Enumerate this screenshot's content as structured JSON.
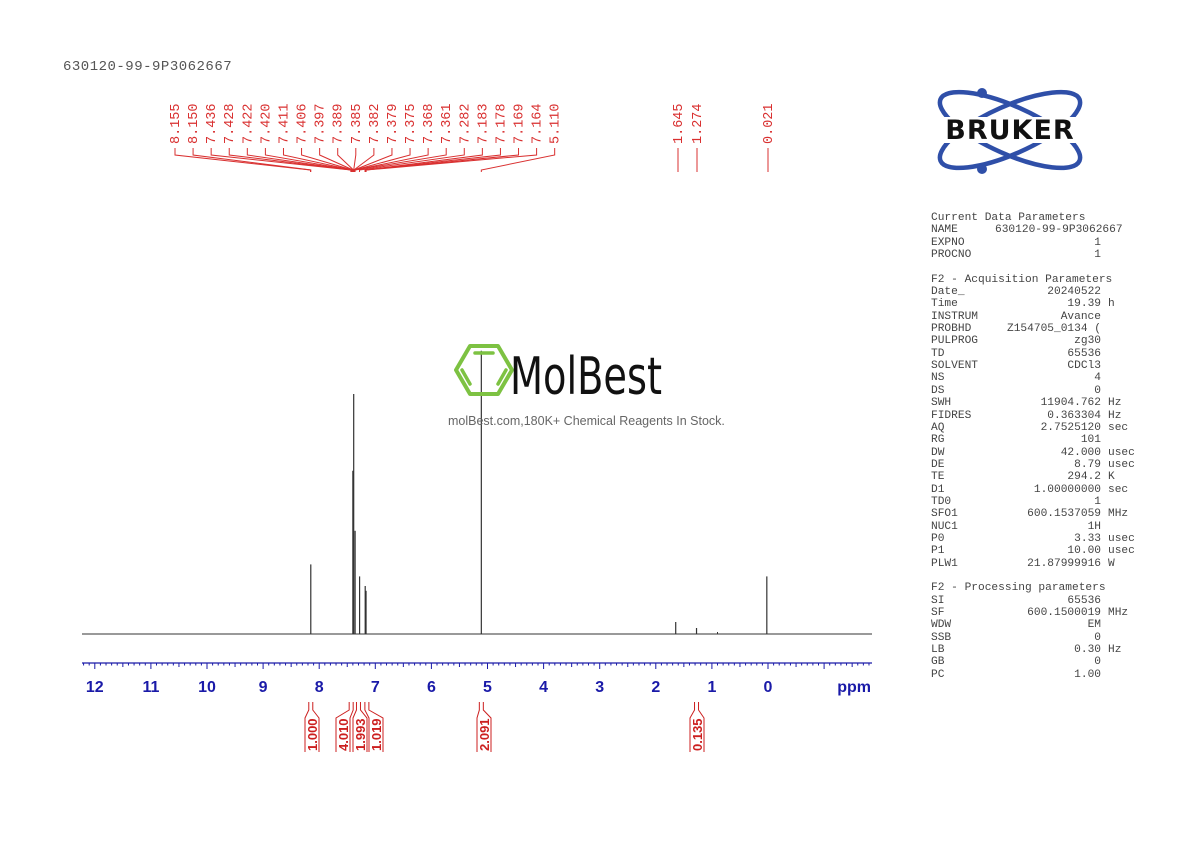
{
  "title": "630120-99-9P3062667",
  "colors": {
    "peak_labels": "#d93030",
    "axis": "#1a1aa8",
    "spectrum": "#333333",
    "integral": "#cc1f1f",
    "bruker_blue": "#2f4fa8",
    "molbest_green": "#7dc242"
  },
  "logo": {
    "brand": "BRUKER"
  },
  "watermark": {
    "brand": "MolBest",
    "tagline": "molBest.com,180K+ Chemical Reagents In Stock."
  },
  "parameters": {
    "current": {
      "heading": "Current Data Parameters",
      "rows": [
        {
          "key": "NAME",
          "value": "630120-99-9P3062667",
          "unit": ""
        },
        {
          "key": "EXPNO",
          "value": "1",
          "unit": ""
        },
        {
          "key": "PROCNO",
          "value": "1",
          "unit": ""
        }
      ]
    },
    "acquisition": {
      "heading": "F2 - Acquisition Parameters",
      "rows": [
        {
          "key": "Date_",
          "value": "20240522",
          "unit": ""
        },
        {
          "key": "Time",
          "value": "19.39",
          "unit": "h"
        },
        {
          "key": "INSTRUM",
          "value": "Avance",
          "unit": ""
        },
        {
          "key": "PROBHD",
          "value": "Z154705_0134 (",
          "unit": ""
        },
        {
          "key": "PULPROG",
          "value": "zg30",
          "unit": ""
        },
        {
          "key": "TD",
          "value": "65536",
          "unit": ""
        },
        {
          "key": "SOLVENT",
          "value": "CDCl3",
          "unit": ""
        },
        {
          "key": "NS",
          "value": "4",
          "unit": ""
        },
        {
          "key": "DS",
          "value": "0",
          "unit": ""
        },
        {
          "key": "SWH",
          "value": "11904.762",
          "unit": "Hz"
        },
        {
          "key": "FIDRES",
          "value": "0.363304",
          "unit": "Hz"
        },
        {
          "key": "AQ",
          "value": "2.7525120",
          "unit": "sec"
        },
        {
          "key": "RG",
          "value": "101",
          "unit": ""
        },
        {
          "key": "DW",
          "value": "42.000",
          "unit": "usec"
        },
        {
          "key": "DE",
          "value": "8.79",
          "unit": "usec"
        },
        {
          "key": "TE",
          "value": "294.2",
          "unit": "K"
        },
        {
          "key": "D1",
          "value": "1.00000000",
          "unit": "sec"
        },
        {
          "key": "TD0",
          "value": "1",
          "unit": ""
        },
        {
          "key": "SFO1",
          "value": "600.1537059",
          "unit": "MHz"
        },
        {
          "key": "NUC1",
          "value": "1H",
          "unit": ""
        },
        {
          "key": "P0",
          "value": "3.33",
          "unit": "usec"
        },
        {
          "key": "P1",
          "value": "10.00",
          "unit": "usec"
        },
        {
          "key": "PLW1",
          "value": "21.87999916",
          "unit": "W"
        }
      ]
    },
    "processing": {
      "heading": "F2 - Processing parameters",
      "rows": [
        {
          "key": "SI",
          "value": "65536",
          "unit": ""
        },
        {
          "key": "SF",
          "value": "600.1500019",
          "unit": "MHz"
        },
        {
          "key": "WDW",
          "value": "EM",
          "unit": ""
        },
        {
          "key": "SSB",
          "value": "0",
          "unit": ""
        },
        {
          "key": "LB",
          "value": "0.30",
          "unit": "Hz"
        },
        {
          "key": "GB",
          "value": "0",
          "unit": ""
        },
        {
          "key": "PC",
          "value": "1.00",
          "unit": ""
        }
      ]
    }
  },
  "chart_data": {
    "type": "line",
    "title": "630120-99-9P3062667",
    "xlabel": "ppm",
    "ylabel": "",
    "xlim": [
      12.2,
      -1.85
    ],
    "x_reversed": true,
    "grid": false,
    "x_ticks": [
      12,
      11,
      10,
      9,
      8,
      7,
      6,
      5,
      4,
      3,
      2,
      1,
      0
    ],
    "x_tick_labels": [
      "12",
      "11",
      "10",
      "9",
      "8",
      "7",
      "6",
      "5",
      "4",
      "3",
      "2",
      "1",
      "0"
    ],
    "axis_unit_label": "ppm",
    "peak_labels": [
      "8.155",
      "8.150",
      "7.436",
      "7.428",
      "7.422",
      "7.420",
      "7.411",
      "7.406",
      "7.397",
      "7.389",
      "7.385",
      "7.382",
      "7.379",
      "7.375",
      "7.368",
      "7.361",
      "7.282",
      "7.183",
      "7.178",
      "7.169",
      "7.164",
      "5.110",
      "1.645",
      "1.274",
      "0.021"
    ],
    "peaks": [
      {
        "ppm": 8.15,
        "rel_height": 0.29
      },
      {
        "ppm": 7.4,
        "rel_height": 0.68
      },
      {
        "ppm": 7.385,
        "rel_height": 1.0
      },
      {
        "ppm": 7.36,
        "rel_height": 0.43
      },
      {
        "ppm": 7.28,
        "rel_height": 0.24
      },
      {
        "ppm": 7.18,
        "rel_height": 0.2
      },
      {
        "ppm": 7.165,
        "rel_height": 0.18
      },
      {
        "ppm": 5.11,
        "rel_height": 1.18
      },
      {
        "ppm": 1.645,
        "rel_height": 0.05
      },
      {
        "ppm": 1.274,
        "rel_height": 0.025
      },
      {
        "ppm": 0.021,
        "rel_height": 0.24
      }
    ],
    "integrals": [
      {
        "ppm": 8.15,
        "value": "1.000"
      },
      {
        "ppm": 7.43,
        "value": "4.010"
      },
      {
        "ppm": 7.3,
        "value": "1.993"
      },
      {
        "ppm": 7.15,
        "value": "1.019"
      },
      {
        "ppm": 5.11,
        "value": "2.091"
      },
      {
        "ppm": 1.274,
        "value": "0.135"
      }
    ]
  }
}
